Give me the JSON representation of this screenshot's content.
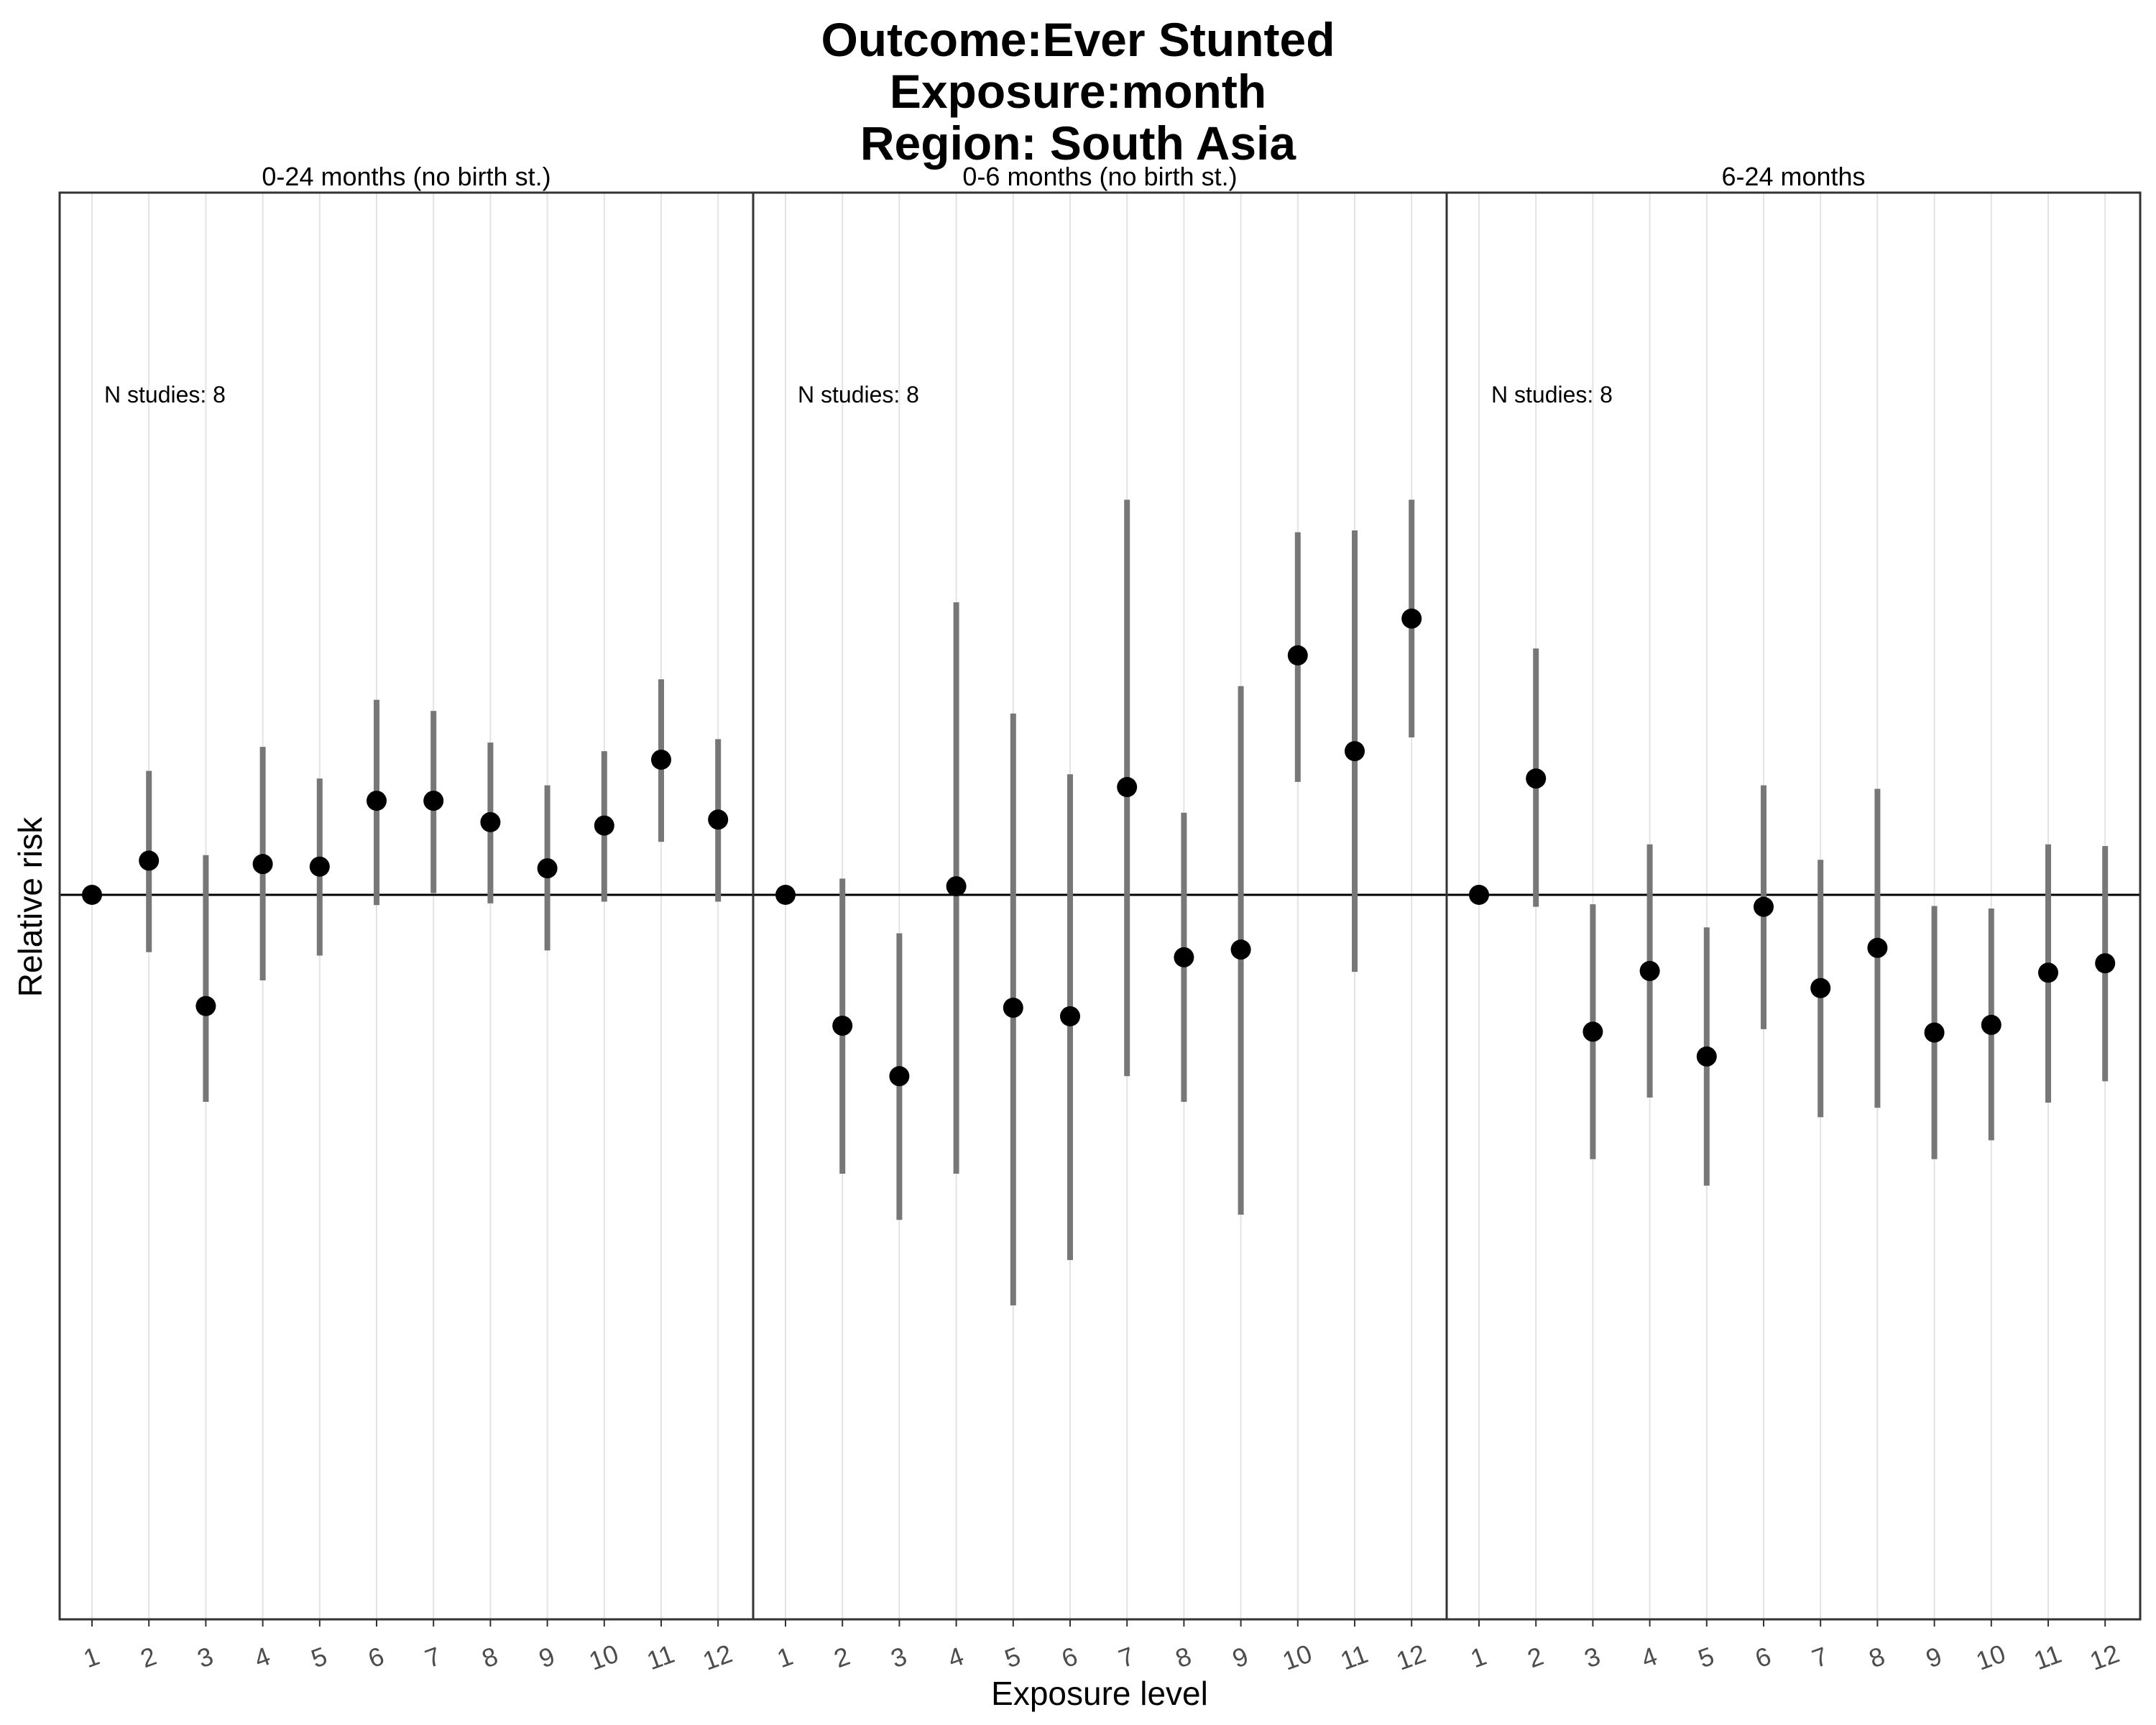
{
  "chart_data": {
    "type": "scatter",
    "title_lines": [
      "Outcome:Ever Stunted",
      "Exposure:month",
      "Region: South Asia"
    ],
    "xlabel": "Exposure level",
    "ylabel": "Relative risk",
    "categories": [
      "1",
      "2",
      "3",
      "4",
      "5",
      "6",
      "7",
      "8",
      "9",
      "10",
      "11",
      "12"
    ],
    "reference_line": 1,
    "ylim": [
      0.6,
      1.6
    ],
    "grid": true,
    "panels": [
      {
        "label": "0-24 months (no birth st.)",
        "annotation": "N studies: 8",
        "estimates": [
          1.0,
          1.04,
          0.87,
          1.036,
          1.033,
          1.11,
          1.11,
          1.085,
          1.031,
          1.081,
          1.158,
          1.088
        ],
        "ci_lower": [
          null,
          0.933,
          0.758,
          0.9,
          0.929,
          0.988,
          1.002,
          0.99,
          0.935,
          0.992,
          1.062,
          0.992
        ],
        "ci_upper": [
          null,
          1.145,
          null,
          1.173,
          1.136,
          1.228,
          1.215,
          1.178,
          1.128,
          1.168,
          1.252,
          1.182
        ]
      },
      {
        "label": "0-6 months (no birth st.)",
        "annotation": "N studies: 8",
        "estimates": [
          1.0,
          0.847,
          0.788,
          1.01,
          0.868,
          0.858,
          1.126,
          0.927,
          0.936,
          1.28,
          1.168,
          1.323
        ],
        "ci_lower": [
          null,
          0.674,
          0.62,
          0.674,
          0.52,
          0.573,
          0.788,
          0.758,
          0.626,
          1.132,
          0.91,
          1.184
        ],
        "ci_upper": [
          null,
          1.019,
          0.955,
          1.342,
          1.212,
          1.141,
          1.462,
          1.096,
          1.244,
          1.424,
          1.426,
          1.462
        ]
      },
      {
        "label": "6-24 months",
        "annotation": "N studies: 8",
        "estimates": [
          1.0,
          1.136,
          0.84,
          0.911,
          0.811,
          0.986,
          0.891,
          0.938,
          0.839,
          0.848,
          0.909,
          0.92
        ],
        "ci_lower": [
          null,
          0.986,
          0.691,
          0.763,
          0.66,
          0.843,
          0.74,
          0.751,
          0.691,
          0.713,
          0.757,
          0.782
        ],
        "ci_upper": [
          null,
          1.288,
          0.989,
          1.059,
          0.962,
          1.128,
          1.041,
          1.124,
          0.987,
          0.984,
          1.059,
          1.057
        ]
      }
    ]
  }
}
